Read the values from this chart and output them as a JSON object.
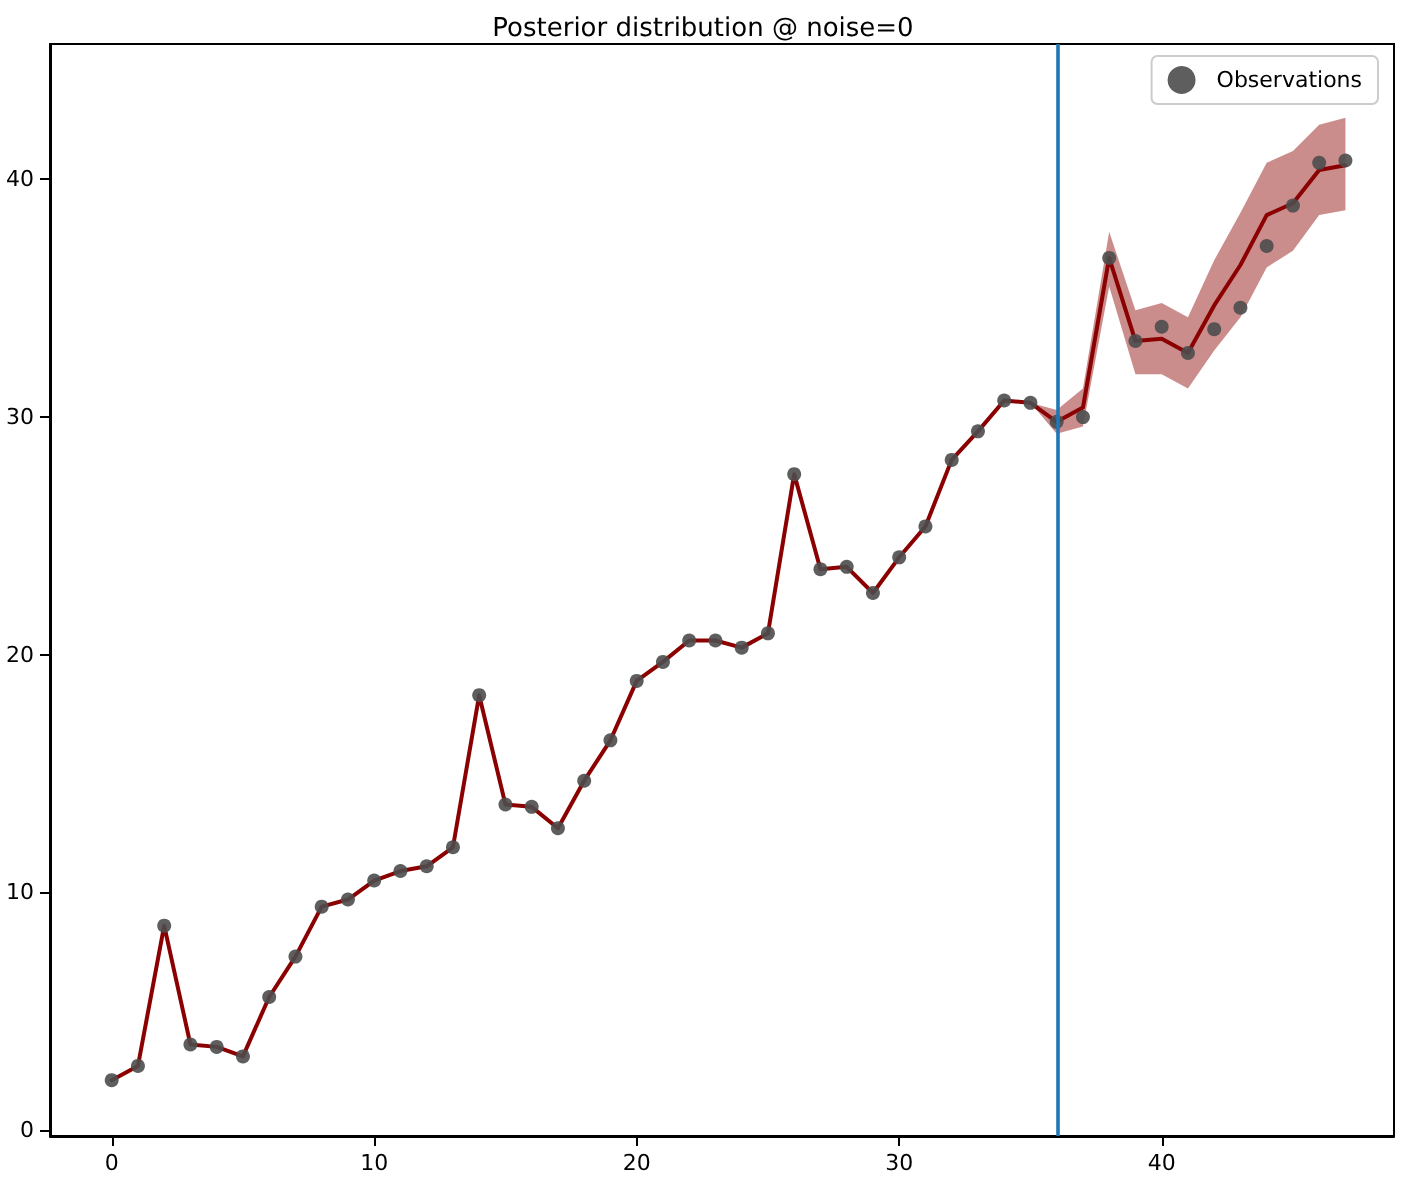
{
  "chart_data": {
    "type": "line",
    "title": "Posterior distribution @ noise=0",
    "x": [
      0,
      1,
      2,
      3,
      4,
      5,
      6,
      7,
      8,
      9,
      10,
      11,
      12,
      13,
      14,
      15,
      16,
      17,
      18,
      19,
      20,
      21,
      22,
      23,
      24,
      25,
      26,
      27,
      28,
      29,
      30,
      31,
      32,
      33,
      34,
      35,
      36,
      37,
      38,
      39,
      40,
      41,
      42,
      43,
      44,
      45,
      46,
      47
    ],
    "series": [
      {
        "color": "#8b0000",
        "marker": "none",
        "values": [
          2.1,
          2.7,
          8.6,
          3.6,
          3.5,
          3.1,
          5.6,
          7.3,
          9.4,
          9.7,
          10.5,
          10.9,
          11.1,
          11.9,
          18.3,
          13.7,
          13.6,
          12.7,
          14.7,
          16.4,
          18.9,
          19.7,
          20.6,
          20.6,
          20.3,
          20.9,
          27.6,
          23.6,
          23.7,
          22.6,
          24.1,
          25.4,
          28.2,
          29.4,
          30.7,
          30.6,
          29.8,
          30.4,
          36.7,
          33.2,
          33.3,
          32.7,
          34.7,
          36.4,
          38.5,
          39.0,
          40.4,
          40.6
        ],
        "lower": [
          2.1,
          2.7,
          8.6,
          3.6,
          3.5,
          3.1,
          5.6,
          7.3,
          9.4,
          9.7,
          10.5,
          10.9,
          11.1,
          11.9,
          18.3,
          13.7,
          13.6,
          12.7,
          14.7,
          16.4,
          18.9,
          19.7,
          20.6,
          20.6,
          20.3,
          20.9,
          27.6,
          23.6,
          23.7,
          22.6,
          24.1,
          25.4,
          28.2,
          29.4,
          30.7,
          30.6,
          29.3,
          29.6,
          35.5,
          31.8,
          31.8,
          31.2,
          32.8,
          34.2,
          36.3,
          37.0,
          38.5,
          38.7
        ],
        "upper": [
          2.1,
          2.7,
          8.6,
          3.6,
          3.5,
          3.1,
          5.6,
          7.3,
          9.4,
          9.7,
          10.5,
          10.9,
          11.1,
          11.9,
          18.3,
          13.7,
          13.6,
          12.7,
          14.7,
          16.4,
          18.9,
          19.7,
          20.6,
          20.6,
          20.3,
          20.9,
          27.6,
          23.6,
          23.7,
          22.6,
          24.1,
          25.4,
          28.2,
          29.4,
          30.7,
          30.6,
          30.3,
          31.2,
          37.8,
          34.5,
          34.8,
          34.2,
          36.6,
          38.6,
          40.7,
          41.2,
          42.3,
          42.6
        ]
      },
      {
        "type": "scatter",
        "name": "Observations",
        "color": "#4d4d4d",
        "marker": "circle",
        "values": [
          2.1,
          2.7,
          8.6,
          3.6,
          3.5,
          3.1,
          5.6,
          7.3,
          9.4,
          9.7,
          10.5,
          10.9,
          11.1,
          11.9,
          18.3,
          13.7,
          13.6,
          12.7,
          14.7,
          16.4,
          18.9,
          19.7,
          20.6,
          20.6,
          20.3,
          20.9,
          27.6,
          23.6,
          23.7,
          22.6,
          24.1,
          25.4,
          28.2,
          29.4,
          30.7,
          30.6,
          29.8,
          30.0,
          36.7,
          33.2,
          33.8,
          32.7,
          33.7,
          34.6,
          37.2,
          38.9,
          40.7,
          40.8
        ]
      }
    ],
    "ref_lines": [
      {
        "axis": "x",
        "value": 36,
        "color": "#1f77b4"
      }
    ],
    "xlim": [
      -2.35,
      48.85
    ],
    "xticks": [
      0,
      10,
      20,
      30,
      40
    ],
    "ylim": [
      -0.25,
      45.7
    ],
    "yticks": [
      0,
      10,
      20,
      30,
      40
    ],
    "grid": false,
    "legend": "top right"
  }
}
